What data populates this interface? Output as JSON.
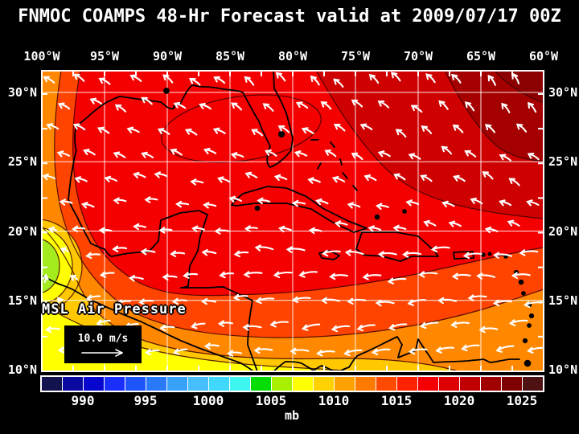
{
  "title": "FNMOC COAMPS 48-Hr Forecast valid at 2009/07/17 00Z",
  "map": {
    "lon_labels": [
      "100°W",
      "95°W",
      "90°W",
      "85°W",
      "80°W",
      "75°W",
      "70°W",
      "65°W",
      "60°W"
    ],
    "lat_labels": [
      "30°N",
      "25°N",
      "20°N",
      "15°N",
      "10°N"
    ],
    "field_label": "MSL Air Pressure",
    "wind_legend_label": "10.0 m/s"
  },
  "colorbar": {
    "unit_label": "mb",
    "tick_labels": [
      "990",
      "995",
      "1000",
      "1005",
      "1010",
      "1015",
      "1020",
      "1025"
    ],
    "segment_colors": [
      "#12124E",
      "#0A0AA0",
      "#0606CE",
      "#1A2FFB",
      "#1D55FA",
      "#2A79F8",
      "#39A0FA",
      "#46BEFC",
      "#41D8FD",
      "#3DF6F2",
      "#06DC06",
      "#A8F000",
      "#FFFF00",
      "#FFD200",
      "#FFA200",
      "#FF7A00",
      "#FF4A00",
      "#FF2200",
      "#F50000",
      "#DC0000",
      "#C00000",
      "#A00000",
      "#7E0000",
      "#4E1212"
    ]
  },
  "wind": {
    "arrow_color": "#ffffff",
    "flow": "easterly trades turning anticyclonically to northwesterly in the north, weak cyclonic low near 100W 17N"
  },
  "colors": {
    "background": "#000000",
    "text": "#ffffff",
    "grid": "#ffffff",
    "coastline": "#000000",
    "contour_line": "#3d0000",
    "fill_red": "#F50000",
    "fill_red_dark": "#CE0000",
    "fill_red_darker": "#A40000",
    "fill_maroon": "#8B0000",
    "fill_orange_red": "#FF4400",
    "fill_orange": "#FF8800",
    "fill_gold": "#FFC800",
    "fill_yellow": "#FFFF00",
    "fill_chartreuse": "#A5EC1E"
  }
}
